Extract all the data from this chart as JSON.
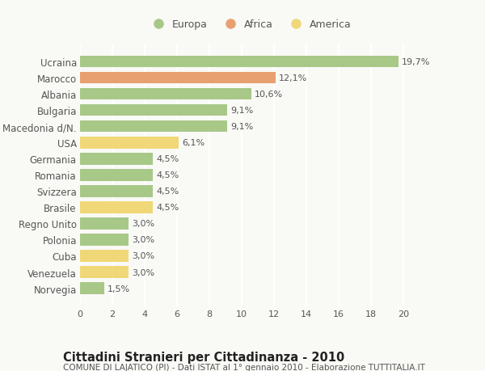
{
  "countries": [
    "Ucraina",
    "Marocco",
    "Albania",
    "Bulgaria",
    "Macedonia d/N.",
    "USA",
    "Germania",
    "Romania",
    "Svizzera",
    "Brasile",
    "Regno Unito",
    "Polonia",
    "Cuba",
    "Venezuela",
    "Norvegia"
  ],
  "values": [
    19.7,
    12.1,
    10.6,
    9.1,
    9.1,
    6.1,
    4.5,
    4.5,
    4.5,
    4.5,
    3.0,
    3.0,
    3.0,
    3.0,
    1.5
  ],
  "labels": [
    "19,7%",
    "12,1%",
    "10,6%",
    "9,1%",
    "9,1%",
    "6,1%",
    "4,5%",
    "4,5%",
    "4,5%",
    "4,5%",
    "3,0%",
    "3,0%",
    "3,0%",
    "3,0%",
    "1,5%"
  ],
  "colors": [
    "#a8c888",
    "#e8a070",
    "#a8c888",
    "#a8c888",
    "#a8c888",
    "#f0d878",
    "#a8c888",
    "#a8c888",
    "#a8c888",
    "#f0d878",
    "#a8c888",
    "#a8c888",
    "#f0d878",
    "#f0d878",
    "#a8c888"
  ],
  "legend_labels": [
    "Europa",
    "Africa",
    "America"
  ],
  "legend_colors": [
    "#a8c888",
    "#e8a070",
    "#f0d878"
  ],
  "title": "Cittadini Stranieri per Cittadinanza - 2010",
  "subtitle": "COMUNE DI LAJATICO (PI) - Dati ISTAT al 1° gennaio 2010 - Elaborazione TUTTITALIA.IT",
  "xlim": [
    0,
    21
  ],
  "xticks": [
    0,
    2,
    4,
    6,
    8,
    10,
    12,
    14,
    16,
    18,
    20
  ],
  "bg_color": "#f9f9f6",
  "grid_color": "#ffffff",
  "bar_height": 0.72,
  "label_fontsize": 8,
  "tick_fontsize": 8,
  "ytick_fontsize": 8.5,
  "title_fontsize": 10.5,
  "subtitle_fontsize": 7.5,
  "legend_fontsize": 9
}
